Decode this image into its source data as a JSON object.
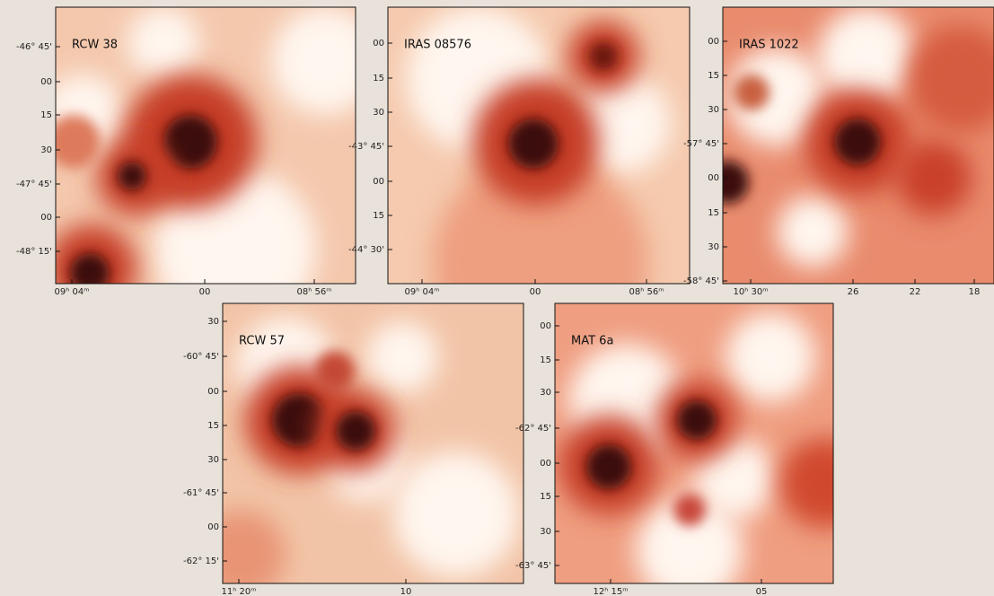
{
  "panels": [
    {
      "label": "RCW 38",
      "y_ticks": [
        "-46° 45'",
        "00",
        "15",
        "30",
        "-47° 45'",
        "00",
        "-48° 15'"
      ],
      "x_ticks": [
        "09ʰ 04ᵐ",
        "00",
        "08ʰ 56ᵐ"
      ]
    },
    {
      "label": "IRAS 08576",
      "y_ticks": [
        "00",
        "15",
        "30",
        "-43° 45'",
        "00",
        "15",
        "-44° 30'"
      ],
      "x_ticks": [
        "09ʰ 04ᵐ",
        "00",
        "08ʰ 56ᵐ"
      ]
    },
    {
      "label": "IRAS 1022",
      "y_ticks": [
        "00",
        "15",
        "30",
        "-57° 45'",
        "00",
        "15",
        "30",
        "-58° 45'"
      ],
      "x_ticks": [
        "10ʰ 30ᵐ",
        "26",
        "22",
        "18"
      ]
    },
    {
      "label": "RCW 57",
      "y_ticks": [
        "30",
        "-60° 45'",
        "00",
        "15",
        "30",
        "-61° 45'",
        "00",
        "-62° 15'"
      ],
      "x_ticks": [
        "11ʰ 20ᵐ",
        "10"
      ]
    },
    {
      "label": "MAT 6a",
      "y_ticks": [
        "00",
        "15",
        "30",
        "-62° 45'",
        "00",
        "15",
        "30",
        "-63° 45'"
      ],
      "x_ticks": [
        "12ʰ 15ᵐ",
        "05"
      ]
    }
  ]
}
